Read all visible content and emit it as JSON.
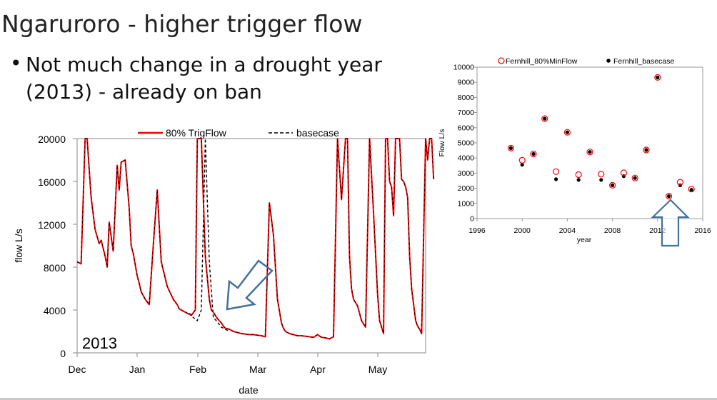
{
  "slide": {
    "title": "Ngaruroro - higher trigger flow",
    "bullet_symbol": "•",
    "bullet_lines": [
      "Not much change in a drought year",
      "(2013) - already on ban"
    ]
  },
  "chart_data": [
    {
      "type": "line",
      "ylabel": "flow L/s",
      "xlabel": "date",
      "annotation": "2013",
      "ylim": [
        0,
        20000
      ],
      "yticks": [
        "20000",
        "16000",
        "12000",
        "8000",
        "4000",
        "0"
      ],
      "xticks": [
        "Dec",
        "Jan",
        "Feb",
        "Mar",
        "Apr",
        "May"
      ],
      "legend": [
        "80% TrigFlow",
        "basecase"
      ],
      "legend_position": "top",
      "colors": {
        "trigflow": "#ff0000",
        "basecase": "#000000"
      },
      "x_unit": "day since Dec 1",
      "series": [
        {
          "name": "80% TrigFlow",
          "x": [
            0,
            2,
            4,
            5,
            7,
            9,
            11,
            12,
            14,
            15,
            16,
            18,
            20,
            21,
            22,
            24,
            26,
            27,
            28,
            30,
            31,
            32,
            34,
            36,
            38,
            40,
            42,
            45,
            48,
            50,
            51,
            52,
            54,
            57,
            59,
            60,
            62,
            64,
            66,
            67,
            68,
            70,
            72,
            73,
            74,
            76,
            78,
            80,
            82,
            84,
            86,
            88,
            90,
            92,
            94,
            96,
            98,
            100,
            102,
            103,
            104,
            106,
            108,
            110,
            112,
            114,
            116,
            118,
            120,
            122,
            124,
            126,
            128,
            130,
            132,
            134,
            135,
            136,
            137,
            138,
            140,
            142,
            144,
            146,
            148,
            150,
            151,
            152,
            153,
            154,
            155,
            156,
            157,
            158,
            159,
            160,
            161,
            162,
            163,
            164,
            165,
            166,
            167,
            168,
            169,
            170,
            171,
            172,
            174,
            175,
            176,
            177,
            178
          ],
          "y": [
            8500,
            8300,
            20000,
            20000,
            14500,
            11500,
            10200,
            10500,
            9000,
            8000,
            12200,
            9500,
            17500,
            15200,
            17800,
            18000,
            13500,
            10000,
            9300,
            7200,
            6500,
            5700,
            5000,
            4500,
            10000,
            15200,
            8500,
            6200,
            5000,
            4500,
            4100,
            4000,
            3800,
            3500,
            4000,
            20000,
            20000,
            9000,
            5000,
            4000,
            3800,
            3200,
            2800,
            2500,
            2300,
            2200,
            2000,
            1900,
            1800,
            1750,
            1700,
            1700,
            1650,
            1600,
            1500,
            14000,
            11000,
            5000,
            2800,
            2300,
            2000,
            1800,
            1700,
            1600,
            1600,
            1550,
            1500,
            1450,
            1700,
            1450,
            1400,
            1300,
            1500,
            20000,
            14300,
            20000,
            20000,
            9000,
            6000,
            5000,
            4400,
            3000,
            2400,
            20000,
            13000,
            5500,
            3000,
            2400,
            1800,
            20000,
            20000,
            16000,
            15500,
            12800,
            20000,
            20000,
            20000,
            16200,
            16000,
            15500,
            14500,
            9000,
            6000,
            4500,
            3000,
            2500,
            2200,
            1800,
            20000,
            18000,
            20000,
            20000,
            16200
          ],
          "extra_points": [
            [
              56,
              4300
            ],
            [
              60,
              3600
            ],
            [
              64,
              3200
            ],
            [
              68,
              3400
            ],
            [
              70,
              2900
            ]
          ]
        },
        {
          "name": "basecase",
          "x": [
            56,
            58,
            60,
            62,
            64,
            66,
            68,
            70,
            72,
            74,
            76
          ],
          "y": [
            3700,
            3300,
            3000,
            4000,
            20000,
            8500,
            3300,
            2900,
            2400,
            2200,
            2000
          ]
        }
      ]
    },
    {
      "type": "scatter",
      "ylabel": "Flow L/s",
      "xlabel": "year",
      "ylim": [
        0,
        10000
      ],
      "xlim": [
        1996,
        2016
      ],
      "yticks": [
        "10000",
        "9000",
        "8000",
        "7000",
        "6000",
        "5000",
        "4000",
        "3000",
        "2000",
        "1000",
        "0"
      ],
      "xticks": [
        "1996",
        "2000",
        "2004",
        "2008",
        "2012",
        "2016"
      ],
      "legend": [
        "Fernhill_80%MinFlow",
        "Fernhill_basecase"
      ],
      "legend_position": "top",
      "colors": {
        "minflow": "#ff0000",
        "basecase": "#000000"
      },
      "series": [
        {
          "name": "Fernhill_80%MinFlow",
          "x": [
            1999,
            2000,
            2001,
            2002,
            2003,
            2004,
            2005,
            2006,
            2007,
            2008,
            2009,
            2010,
            2011,
            2012,
            2013,
            2014,
            2015
          ],
          "y": [
            4650,
            3850,
            4270,
            6600,
            3100,
            5700,
            2900,
            4400,
            2930,
            2200,
            3020,
            2680,
            4530,
            9320,
            1480,
            2400,
            1950
          ]
        },
        {
          "name": "Fernhill_basecase",
          "x": [
            1999,
            2000,
            2001,
            2002,
            2003,
            2004,
            2005,
            2006,
            2007,
            2008,
            2009,
            2010,
            2011,
            2012,
            2013,
            2014,
            2015
          ],
          "y": [
            4650,
            3550,
            4270,
            6600,
            2600,
            5700,
            2550,
            4400,
            2550,
            2200,
            2800,
            2680,
            4530,
            9320,
            1480,
            2200,
            1900
          ]
        }
      ]
    }
  ]
}
